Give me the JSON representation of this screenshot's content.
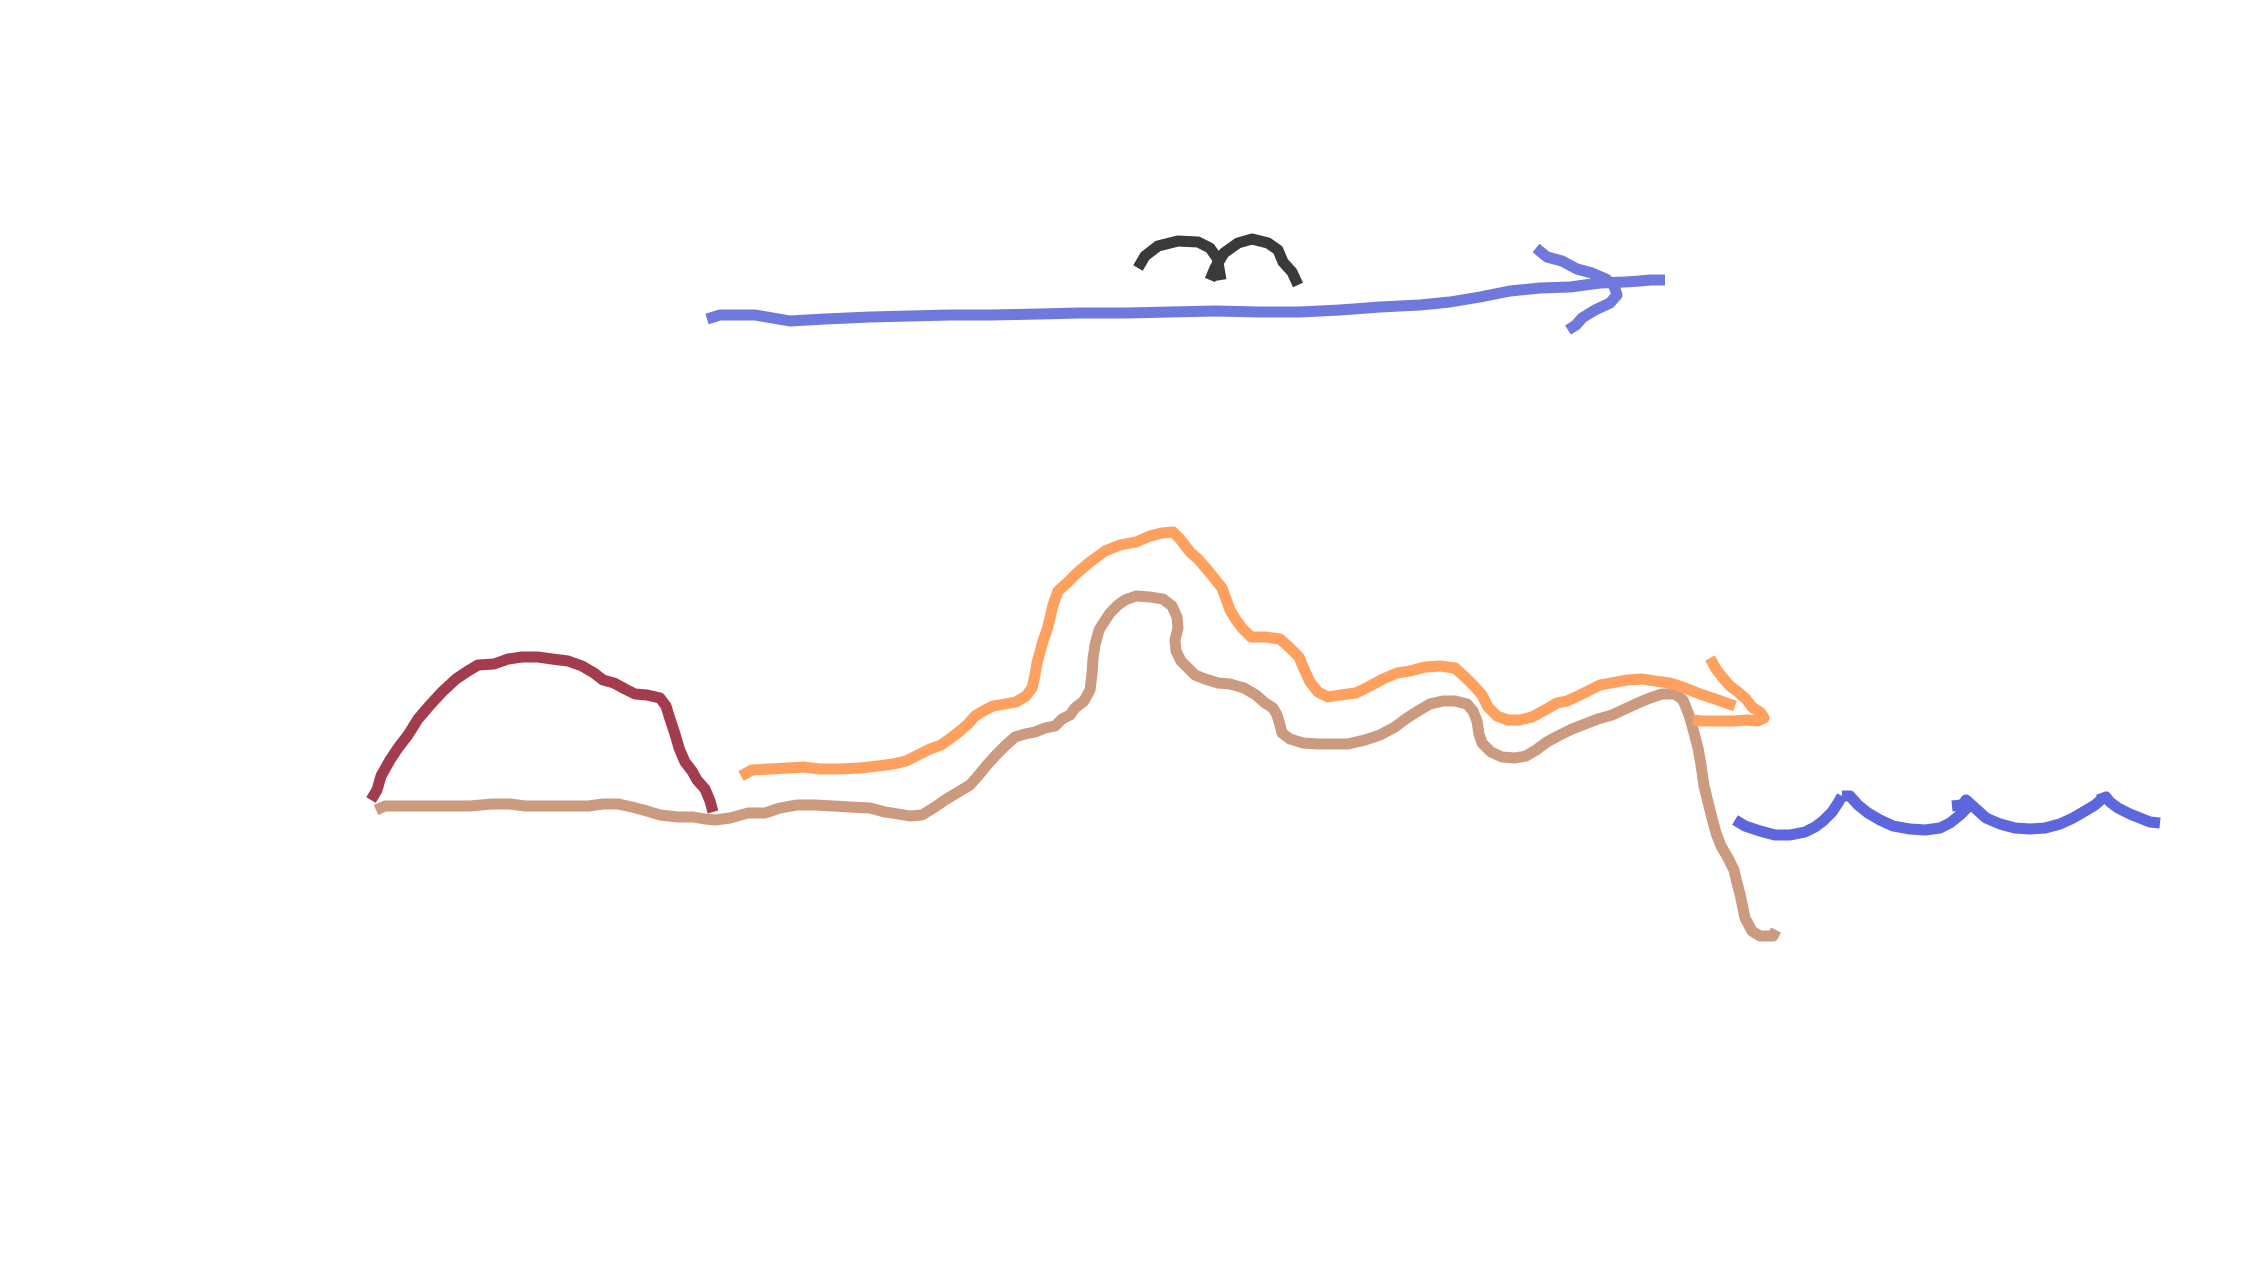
{
  "drawing": {
    "background": "#ffffff",
    "strokes": [
      {
        "name": "bird-stroke",
        "color": "#3a3a3a"
      },
      {
        "name": "wind-arrow-stroke",
        "color": "#6f78dd"
      },
      {
        "name": "sun-dome-stroke",
        "color": "#a33c4c"
      },
      {
        "name": "ground-line-stroke",
        "color": "#cc9a7e"
      },
      {
        "name": "hill-outline-stroke",
        "color": "#ffa05e"
      },
      {
        "name": "water-waves-stroke",
        "color": "#5c66dd"
      }
    ]
  }
}
